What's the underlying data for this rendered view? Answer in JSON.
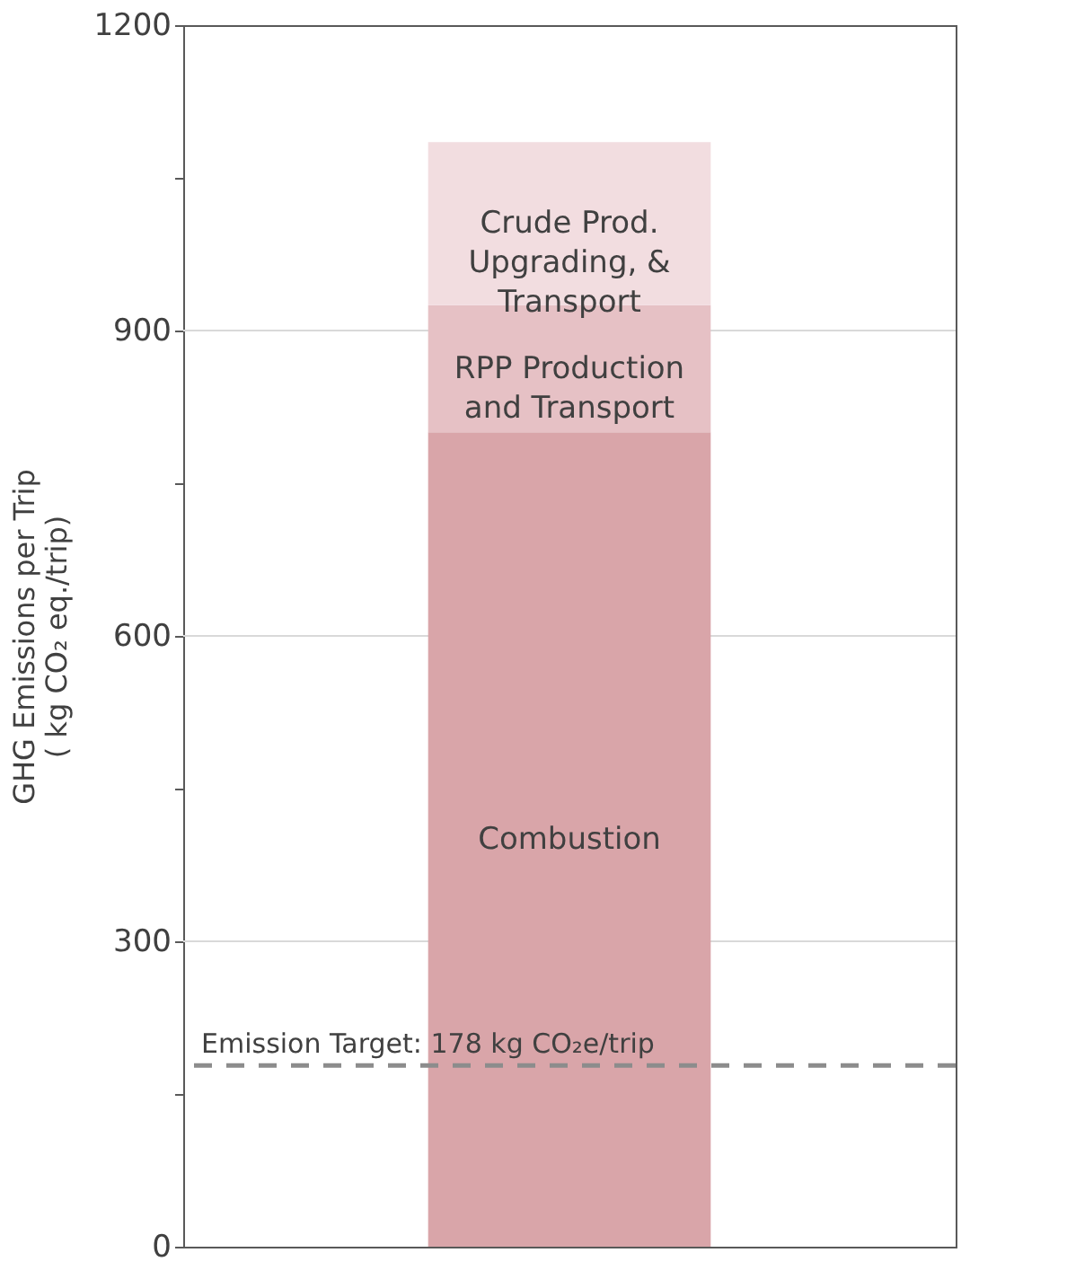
{
  "chart_data": {
    "type": "bar",
    "stacked": true,
    "categories": [
      null
    ],
    "ylabel": "GHG Emissions per Trip\n( kg CO₂ eq./trip)",
    "series": [
      {
        "name": "Combustion",
        "color": "#d9a5a9",
        "values": [
          800
        ]
      },
      {
        "name": "RPP Production and Transport",
        "color": "#e6c1c5",
        "values": [
          125
        ]
      },
      {
        "name": "Crude Prod. Upgrading, & Transport",
        "color": "#f2dde0",
        "values": [
          160
        ]
      }
    ],
    "ylim": [
      0,
      1200
    ],
    "yticks": [
      0,
      {
        "value": 150,
        "label": null
      },
      300,
      {
        "value": 450,
        "label": null
      },
      600,
      {
        "value": 750,
        "label": null
      },
      900,
      {
        "value": 1050,
        "label": null
      },
      1200
    ],
    "ref_lines": [
      {
        "axis": "y",
        "value": 178,
        "label": "Emission Target: 178 kg CO₂e/trip",
        "color": "#8c8c8c",
        "line_style": "dashed"
      }
    ],
    "grid": "y",
    "legend": false,
    "tick_labels": "y"
  }
}
